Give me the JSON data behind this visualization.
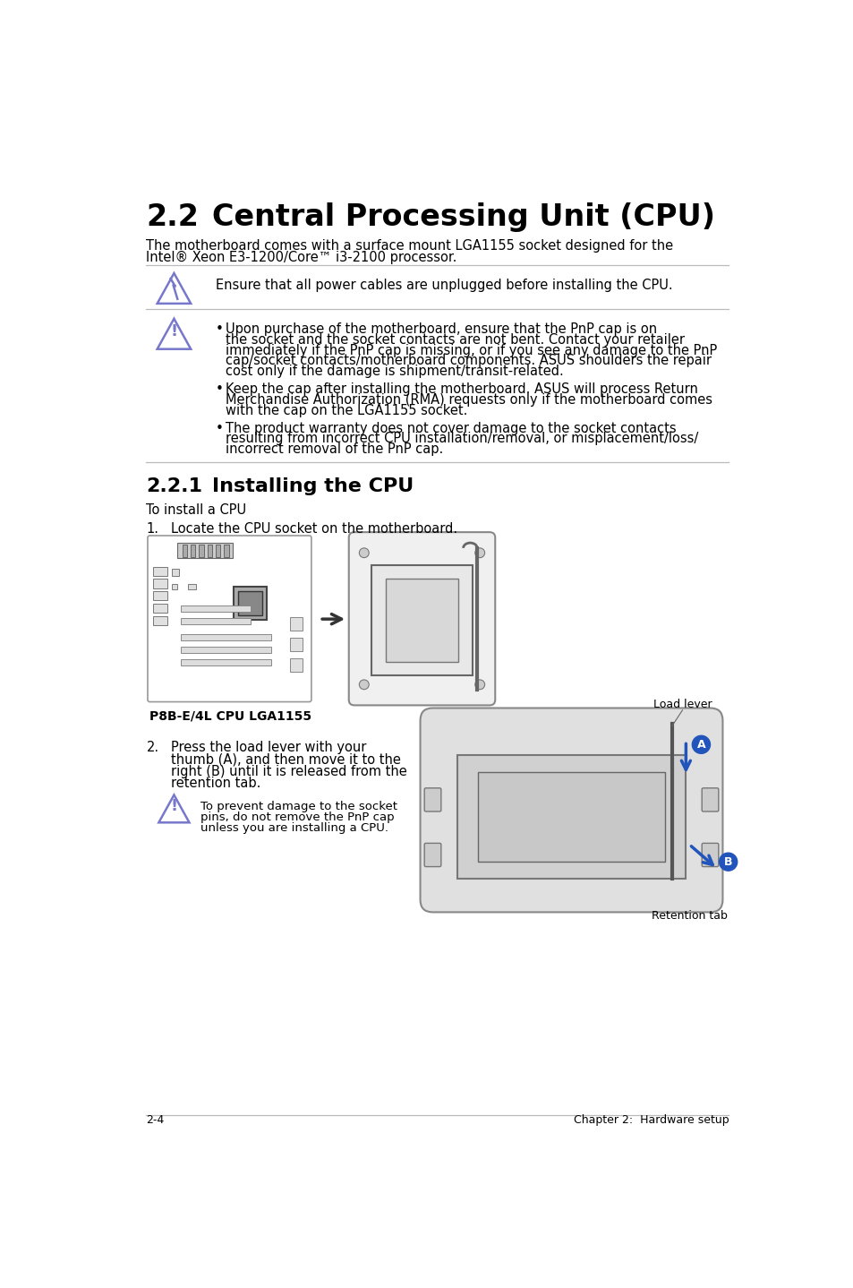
{
  "bg_color": "#ffffff",
  "title_num": "2.2",
  "title_text": "Central Processing Unit (CPU)",
  "subtitle_line1": "The motherboard comes with a surface mount LGA1155 socket designed for the",
  "subtitle_line2": "Intel® Xeon E3-1200/Core™ i3-2100 processor.",
  "warning_text": "Ensure that all power cables are unplugged before installing the CPU.",
  "bullet1_lines": [
    "Upon purchase of the motherboard, ensure that the PnP cap is on",
    "the socket and the socket contacts are not bent. Contact your retailer",
    "immediately if the PnP cap is missing, or if you see any damage to the PnP",
    "cap/socket contacts/motherboard components. ASUS shoulders the repair",
    "cost only if the damage is shipment/transit-related."
  ],
  "bullet2_lines": [
    "Keep the cap after installing the motherboard. ASUS will process Return",
    "Merchandise Authorization (RMA) requests only if the motherboard comes",
    "with the cap on the LGA1155 socket."
  ],
  "bullet3_lines": [
    "The product warranty does not cover damage to the socket contacts",
    "resulting from incorrect CPU installation/removal, or misplacement/loss/",
    "incorrect removal of the PnP cap."
  ],
  "sec_num": "2.2.1",
  "sec_text": "Installing the CPU",
  "install_intro": "To install a CPU",
  "step1_num": "1.",
  "step1_text": "Locate the CPU socket on the motherboard.",
  "step1_label": "P8B-E/4L CPU LGA1155",
  "step2_num": "2.",
  "step2_lines": [
    "Press the load lever with your",
    "thumb (A), and then move it to the",
    "right (B) until it is released from the",
    "retention tab."
  ],
  "caution2_lines": [
    "To prevent damage to the socket",
    "pins, do not remove the PnP cap",
    "unless you are installing a CPU."
  ],
  "lbl_load_lever": "Load lever",
  "lbl_a": "A",
  "lbl_b": "B",
  "lbl_ret": "Retention tab",
  "footer_left": "2-4",
  "footer_right": "Chapter 2:  Hardware setup",
  "text_color": "#000000",
  "line_color": "#bbbbbb",
  "icon_color": "#7777cc",
  "blue_color": "#2255bb",
  "gray_light": "#f0f0f0",
  "gray_mid": "#cccccc",
  "gray_dark": "#888888"
}
